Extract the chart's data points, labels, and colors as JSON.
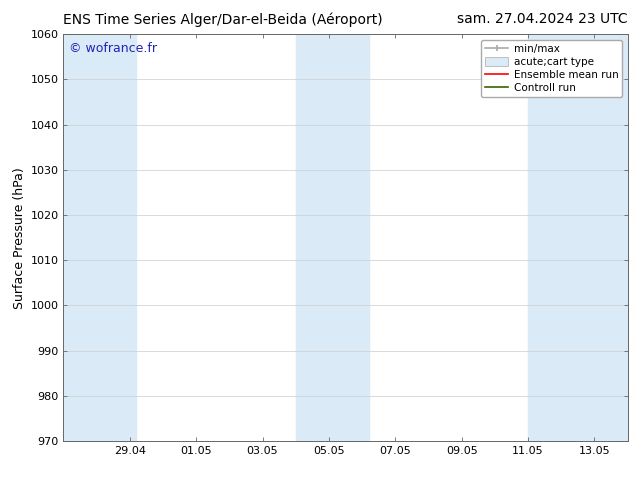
{
  "title_left": "ENS Time Series Alger/Dar-el-Beida (Aéroport)",
  "title_right": "sam. 27.04.2024 23 UTC",
  "ylabel": "Surface Pressure (hPa)",
  "ylim": [
    970,
    1060
  ],
  "yticks": [
    970,
    980,
    990,
    1000,
    1010,
    1020,
    1030,
    1040,
    1050,
    1060
  ],
  "xtick_labels": [
    "29.04",
    "01.05",
    "03.05",
    "05.05",
    "07.05",
    "09.05",
    "11.05",
    "13.05"
  ],
  "xtick_positions": [
    2,
    4,
    6,
    8,
    10,
    12,
    14,
    16
  ],
  "xlim": [
    0,
    17
  ],
  "watermark": "© wofrance.fr",
  "watermark_color": "#2222bb",
  "background_color": "#ffffff",
  "plot_bg_color": "#ffffff",
  "shaded_bands": [
    {
      "x_start": 0.0,
      "x_end": 2.2,
      "color": "#daeaf7"
    },
    {
      "x_start": 7.0,
      "x_end": 9.2,
      "color": "#daeaf7"
    },
    {
      "x_start": 14.0,
      "x_end": 17.0,
      "color": "#daeaf7"
    }
  ],
  "legend_entries": [
    {
      "label": "min/max",
      "type": "errorbar",
      "color": "#aaaaaa"
    },
    {
      "label": "acute;cart type",
      "type": "fillbetween",
      "color": "#daeaf7"
    },
    {
      "label": "Ensemble mean run",
      "type": "line",
      "color": "#ff0000"
    },
    {
      "label": "Controll run",
      "type": "line",
      "color": "#336600"
    }
  ],
  "title_fontsize": 10,
  "tick_fontsize": 8,
  "ylabel_fontsize": 9,
  "legend_fontsize": 7.5
}
